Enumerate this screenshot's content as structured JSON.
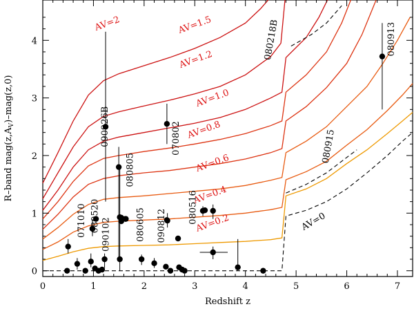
{
  "chart_data": {
    "type": "scatter",
    "xlabel": "Redshift z",
    "ylabel_main": "R–band  mag(z,A",
    "ylabel_sub": "V",
    "ylabel_end": ")–mag(z,0)",
    "xlim": [
      0,
      7.3
    ],
    "ylim": [
      -0.1,
      4.7
    ],
    "x_ticks": [
      0,
      1,
      2,
      3,
      4,
      5,
      6,
      7
    ],
    "y_ticks": [
      0,
      1,
      2,
      3,
      4
    ],
    "colors": {
      "dark_red": "#cc1111",
      "red": "#dd3311",
      "orange_red": "#e85a10",
      "orange": "#ee9900",
      "label_red": "#dd1111",
      "black": "#000000"
    },
    "extinction_curves": [
      {
        "label": "AV=2",
        "color": "#cc1111",
        "points": [
          [
            0,
            1.52
          ],
          [
            0.3,
            2.05
          ],
          [
            0.6,
            2.6
          ],
          [
            0.9,
            3.05
          ],
          [
            1.2,
            3.3
          ],
          [
            1.5,
            3.42
          ],
          [
            2.0,
            3.56
          ],
          [
            2.5,
            3.7
          ],
          [
            3.0,
            3.86
          ],
          [
            3.5,
            4.05
          ],
          [
            4.0,
            4.3
          ],
          [
            4.3,
            4.55
          ],
          [
            4.45,
            4.7
          ]
        ]
      },
      {
        "label": "AV=1.5",
        "color": "#cc1111",
        "points": [
          [
            0,
            1.25
          ],
          [
            0.3,
            1.7
          ],
          [
            0.6,
            2.15
          ],
          [
            0.9,
            2.5
          ],
          [
            1.2,
            2.68
          ],
          [
            1.5,
            2.76
          ],
          [
            2.0,
            2.86
          ],
          [
            2.5,
            2.96
          ],
          [
            3.0,
            3.07
          ],
          [
            3.5,
            3.2
          ],
          [
            4.0,
            3.4
          ],
          [
            4.5,
            3.72
          ],
          [
            4.7,
            3.95
          ],
          [
            4.78,
            4.7
          ]
        ]
      },
      {
        "label": "AV=1.2",
        "color": "#cc1111",
        "points": [
          [
            0,
            1.05
          ],
          [
            0.3,
            1.4
          ],
          [
            0.6,
            1.8
          ],
          [
            0.9,
            2.1
          ],
          [
            1.2,
            2.25
          ],
          [
            1.5,
            2.32
          ],
          [
            2.0,
            2.4
          ],
          [
            2.5,
            2.48
          ],
          [
            3.0,
            2.56
          ],
          [
            3.5,
            2.66
          ],
          [
            4.0,
            2.8
          ],
          [
            4.5,
            3.0
          ],
          [
            4.72,
            3.1
          ],
          [
            4.8,
            3.7
          ],
          [
            5.2,
            4.05
          ],
          [
            5.45,
            4.4
          ],
          [
            5.62,
            4.7
          ]
        ]
      },
      {
        "label": "AV=1.0",
        "color": "#dd3311",
        "points": [
          [
            0,
            0.9
          ],
          [
            0.3,
            1.2
          ],
          [
            0.6,
            1.55
          ],
          [
            0.9,
            1.82
          ],
          [
            1.2,
            1.95
          ],
          [
            1.5,
            2.0
          ],
          [
            2.0,
            2.07
          ],
          [
            2.5,
            2.13
          ],
          [
            3.0,
            2.2
          ],
          [
            3.5,
            2.28
          ],
          [
            4.0,
            2.38
          ],
          [
            4.5,
            2.52
          ],
          [
            4.72,
            2.6
          ],
          [
            4.8,
            3.1
          ],
          [
            5.2,
            3.4
          ],
          [
            5.6,
            3.8
          ],
          [
            5.9,
            4.3
          ],
          [
            6.08,
            4.7
          ]
        ]
      },
      {
        "label": "AV=0.8",
        "color": "#dd3311",
        "points": [
          [
            0,
            0.72
          ],
          [
            0.3,
            0.98
          ],
          [
            0.6,
            1.28
          ],
          [
            0.9,
            1.5
          ],
          [
            1.2,
            1.6
          ],
          [
            1.5,
            1.65
          ],
          [
            2.0,
            1.7
          ],
          [
            2.5,
            1.74
          ],
          [
            3.0,
            1.8
          ],
          [
            3.5,
            1.86
          ],
          [
            4.0,
            1.94
          ],
          [
            4.5,
            2.05
          ],
          [
            4.72,
            2.12
          ],
          [
            4.8,
            2.6
          ],
          [
            5.2,
            2.85
          ],
          [
            5.6,
            3.18
          ],
          [
            6.0,
            3.6
          ],
          [
            6.3,
            4.1
          ],
          [
            6.58,
            4.7
          ]
        ]
      },
      {
        "label": "AV=0.6",
        "color": "#e85a10",
        "points": [
          [
            0,
            0.55
          ],
          [
            0.3,
            0.75
          ],
          [
            0.6,
            0.98
          ],
          [
            0.9,
            1.15
          ],
          [
            1.2,
            1.24
          ],
          [
            1.5,
            1.27
          ],
          [
            2.0,
            1.3
          ],
          [
            2.5,
            1.34
          ],
          [
            3.0,
            1.38
          ],
          [
            3.5,
            1.42
          ],
          [
            4.0,
            1.48
          ],
          [
            4.5,
            1.57
          ],
          [
            4.72,
            1.62
          ],
          [
            4.8,
            2.05
          ],
          [
            5.2,
            2.25
          ],
          [
            5.6,
            2.5
          ],
          [
            6.0,
            2.85
          ],
          [
            6.4,
            3.2
          ],
          [
            6.7,
            3.58
          ],
          [
            7.0,
            4.0
          ],
          [
            7.25,
            4.4
          ]
        ]
      },
      {
        "label": "AV=0.4",
        "color": "#e85a10",
        "points": [
          [
            0,
            0.37
          ],
          [
            0.3,
            0.5
          ],
          [
            0.6,
            0.67
          ],
          [
            0.9,
            0.78
          ],
          [
            1.2,
            0.84
          ],
          [
            1.5,
            0.86
          ],
          [
            2.0,
            0.88
          ],
          [
            2.5,
            0.9
          ],
          [
            3.0,
            0.93
          ],
          [
            3.5,
            0.96
          ],
          [
            4.0,
            1.0
          ],
          [
            4.5,
            1.06
          ],
          [
            4.72,
            1.1
          ],
          [
            4.8,
            1.58
          ],
          [
            5.2,
            1.72
          ],
          [
            5.6,
            1.9
          ],
          [
            6.0,
            2.18
          ],
          [
            6.4,
            2.45
          ],
          [
            6.8,
            2.78
          ],
          [
            7.1,
            3.05
          ],
          [
            7.3,
            3.25
          ]
        ]
      },
      {
        "label": "AV=0.2",
        "color": "#ee9900",
        "points": [
          [
            0,
            0.18
          ],
          [
            0.3,
            0.25
          ],
          [
            0.6,
            0.33
          ],
          [
            0.9,
            0.39
          ],
          [
            1.2,
            0.42
          ],
          [
            1.5,
            0.43
          ],
          [
            2.0,
            0.44
          ],
          [
            2.5,
            0.45
          ],
          [
            3.0,
            0.47
          ],
          [
            3.5,
            0.49
          ],
          [
            4.0,
            0.51
          ],
          [
            4.5,
            0.54
          ],
          [
            4.72,
            0.57
          ],
          [
            4.8,
            1.3
          ],
          [
            5.2,
            1.42
          ],
          [
            5.6,
            1.6
          ],
          [
            6.0,
            1.86
          ],
          [
            6.4,
            2.1
          ],
          [
            6.8,
            2.38
          ],
          [
            7.1,
            2.6
          ],
          [
            7.3,
            2.75
          ]
        ]
      }
    ],
    "dashed_curves": [
      {
        "label": "AV=0",
        "points": [
          [
            0,
            0
          ],
          [
            4.72,
            0
          ],
          [
            4.8,
            0.95
          ],
          [
            5.2,
            1.05
          ],
          [
            5.6,
            1.2
          ],
          [
            6.0,
            1.42
          ],
          [
            6.4,
            1.7
          ],
          [
            6.8,
            2.0
          ],
          [
            7.1,
            2.25
          ],
          [
            7.3,
            2.4
          ]
        ]
      },
      {
        "points": [
          [
            4.8,
            1.35
          ],
          [
            5.2,
            1.5
          ],
          [
            5.6,
            1.7
          ],
          [
            5.9,
            1.9
          ],
          [
            6.2,
            2.1
          ]
        ]
      },
      {
        "points": [
          [
            4.9,
            3.9
          ],
          [
            5.3,
            4.1
          ],
          [
            5.6,
            4.3
          ],
          [
            5.9,
            4.6
          ]
        ]
      }
    ],
    "grbs": [
      {
        "name": "090926B",
        "x": 1.24,
        "y": 2.5,
        "y_lo": 1.2,
        "y_hi": 4.15,
        "label_x": 1.28,
        "label_y": 2.5,
        "rotate": -90
      },
      {
        "name": "070802",
        "x": 2.45,
        "y": 2.55,
        "y_lo": 2.2,
        "y_hi": 2.9,
        "label_x": 2.68,
        "label_y": 2.3,
        "rotate": -90
      },
      {
        "name": "080805",
        "x": 1.5,
        "y": 1.8,
        "y_lo": 0.2,
        "y_hi": 2.15,
        "label_x": 1.78,
        "label_y": 1.75,
        "rotate": -90
      },
      {
        "name": "080218B",
        "x": 0,
        "y": 0,
        "label_x": 4.56,
        "label_y": 4.0,
        "rotate": -80
      },
      {
        "name": "080913",
        "x": 6.7,
        "y": 3.72,
        "y_lo": 2.8,
        "y_hi": 4.3,
        "label_x": 6.93,
        "label_y": 4.02,
        "rotate": -90
      },
      {
        "name": "080915",
        "x": 0,
        "y": 0,
        "label_x": 5.69,
        "label_y": 2.15,
        "rotate": -80
      },
      {
        "name": "071010",
        "x": 0.98,
        "y": 0.73,
        "label_x": 0.82,
        "label_y": 0.87,
        "rotate": -90
      },
      {
        "name": "080520",
        "x": 1.05,
        "y": 0.9,
        "label_x": 1.08,
        "label_y": 0.95,
        "rotate": -90
      },
      {
        "name": "090102",
        "x": 1.55,
        "y": 0.92,
        "label_x": 1.3,
        "label_y": 0.63,
        "rotate": -90
      },
      {
        "name": "080605",
        "x": 1.64,
        "y": 0.9,
        "label_x": 1.98,
        "label_y": 0.8,
        "rotate": -90
      },
      {
        "name": "090812",
        "x": 2.45,
        "y": 0.88,
        "label_x": 2.4,
        "label_y": 0.78,
        "rotate": -90
      },
      {
        "name": "080516",
        "x": 3.2,
        "y": 1.05,
        "label_x": 3.02,
        "label_y": 1.1,
        "rotate": -90
      }
    ],
    "points_only": [
      {
        "x": 0.5,
        "y": 0.42,
        "y_lo": 0.3,
        "y_hi": 0.55
      },
      {
        "x": 0.98,
        "y": 0.73,
        "y_lo": 0.6,
        "y_hi": 0.9
      },
      {
        "x": 1.52,
        "y": 0.93
      },
      {
        "x": 1.55,
        "y": 0.86
      },
      {
        "x": 1.63,
        "y": 0.9
      },
      {
        "x": 2.46,
        "y": 0.87,
        "y_lo": 0.75,
        "y_hi": 1.0
      },
      {
        "x": 3.16,
        "y": 1.04,
        "y_lo": 0.95,
        "y_hi": 1.12
      },
      {
        "x": 3.36,
        "y": 1.04,
        "y_lo": 0.9,
        "y_hi": 1.15
      },
      {
        "x": 2.67,
        "y": 0.56
      },
      {
        "x": 0.48,
        "y": 0.0
      },
      {
        "x": 0.68,
        "y": 0.12,
        "y_lo": 0.02,
        "y_hi": 0.22
      },
      {
        "x": 0.84,
        "y": 0.0
      },
      {
        "x": 0.95,
        "y": 0.16,
        "y_lo": 0.06,
        "y_hi": 0.3
      },
      {
        "x": 1.03,
        "y": 0.04
      },
      {
        "x": 1.1,
        "y": 0.0
      },
      {
        "x": 1.17,
        "y": 0.02
      },
      {
        "x": 1.22,
        "y": 0.2,
        "y_lo": 0.05,
        "y_hi": 0.3
      },
      {
        "x": 1.52,
        "y": 0.2,
        "y_lo": 0.0,
        "y_hi": 1.8
      },
      {
        "x": 1.95,
        "y": 0.2,
        "y_lo": 0.1,
        "y_hi": 0.28
      },
      {
        "x": 2.2,
        "y": 0.13,
        "y_lo": 0.05,
        "y_hi": 0.22
      },
      {
        "x": 2.43,
        "y": 0.07
      },
      {
        "x": 2.52,
        "y": 0.0
      },
      {
        "x": 2.69,
        "y": 0.06
      },
      {
        "x": 2.75,
        "y": 0.02
      },
      {
        "x": 2.8,
        "y": 0.0
      },
      {
        "x": 3.36,
        "y": 0.32,
        "y_lo": 0.2,
        "y_hi": 0.42,
        "x_lo": 3.1,
        "x_hi": 3.65
      },
      {
        "x": 3.85,
        "y": 0.06,
        "y_lo": 0.0,
        "y_hi": 0.55
      },
      {
        "x": 4.35,
        "y": 0.0
      }
    ],
    "av_labels": [
      {
        "text": "AV=2",
        "x": 1.05,
        "y": 4.17,
        "rotate": -20
      },
      {
        "text": "AV=1.5",
        "x": 2.7,
        "y": 4.12,
        "rotate": -20
      },
      {
        "text": "AV=1.2",
        "x": 2.72,
        "y": 3.52,
        "rotate": -20
      },
      {
        "text": "AV=1.0",
        "x": 3.05,
        "y": 2.85,
        "rotate": -20
      },
      {
        "text": "AV=0.8",
        "x": 2.88,
        "y": 2.3,
        "rotate": -20
      },
      {
        "text": "AV=0.6",
        "x": 3.05,
        "y": 1.72,
        "rotate": -20
      },
      {
        "text": "AV=0.4",
        "x": 3.0,
        "y": 1.17,
        "rotate": -20
      },
      {
        "text": "AV=0.2",
        "x": 3.05,
        "y": 0.68,
        "rotate": -20
      },
      {
        "text": "AV=0",
        "x": 5.15,
        "y": 0.7,
        "rotate": -30
      }
    ]
  }
}
